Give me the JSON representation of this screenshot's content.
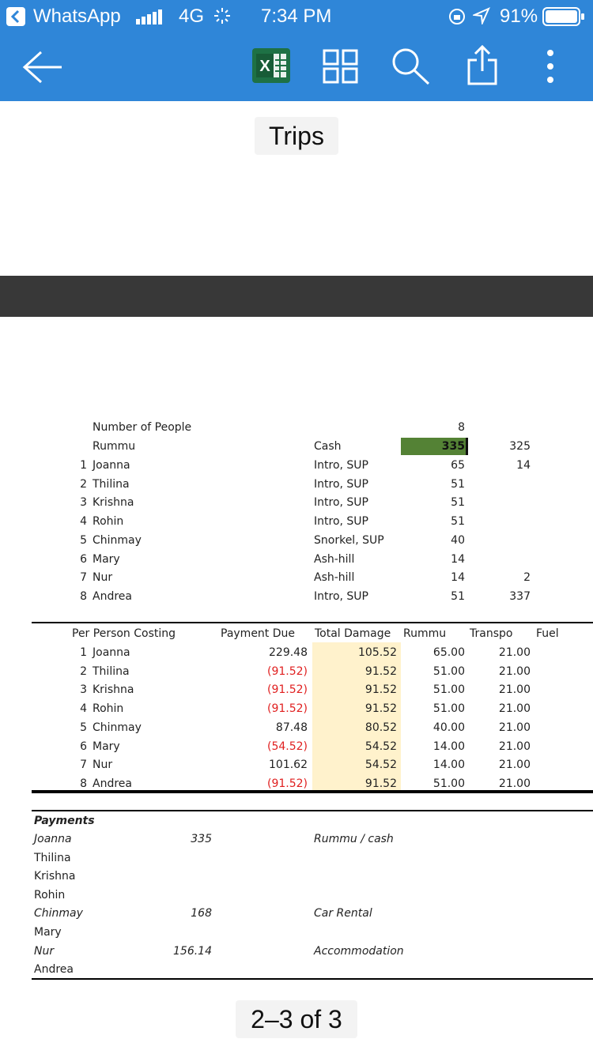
{
  "status_bar": {
    "back_app": "WhatsApp",
    "network": "4G",
    "time": "7:34 PM",
    "battery": "91%"
  },
  "toolbar": {
    "excel_label": "X"
  },
  "document": {
    "title": "Trips",
    "pager": "2–3 of 3"
  },
  "section1": {
    "number_of_people_label": "Number of People",
    "number_of_people_value": "8",
    "rummu_label": "Rummu",
    "cash_label": "Cash",
    "cash_value": "335",
    "cash_extra": "325",
    "rows": [
      {
        "num": "1",
        "name": "Joanna",
        "activity": "Intro, SUP",
        "value": "65",
        "extra": "14"
      },
      {
        "num": "2",
        "name": "Thilina",
        "activity": "Intro, SUP",
        "value": "51",
        "extra": ""
      },
      {
        "num": "3",
        "name": "Krishna",
        "activity": "Intro, SUP",
        "value": "51",
        "extra": ""
      },
      {
        "num": "4",
        "name": "Rohin",
        "activity": "Intro, SUP",
        "value": "51",
        "extra": ""
      },
      {
        "num": "5",
        "name": "Chinmay",
        "activity": "Snorkel, SUP",
        "value": "40",
        "extra": ""
      },
      {
        "num": "6",
        "name": "Mary",
        "activity": "Ash-hill",
        "value": "14",
        "extra": ""
      },
      {
        "num": "7",
        "name": "Nur",
        "activity": "Ash-hill",
        "value": "14",
        "extra": "2"
      },
      {
        "num": "8",
        "name": "Andrea",
        "activity": "Intro, SUP",
        "value": "51",
        "extra": "337"
      }
    ]
  },
  "section2": {
    "headers": {
      "per_person": "Per Person Costing",
      "payment_due": "Payment Due",
      "total_damage": "Total Damage",
      "rummu": "Rummu",
      "transpo": "Transpo",
      "fuel": "Fuel"
    },
    "rows": [
      {
        "num": "1",
        "name": "Joanna",
        "payment_due": "229.48",
        "total_damage": "105.52",
        "rummu": "65.00",
        "transpo": "21.00"
      },
      {
        "num": "2",
        "name": "Thilina",
        "payment_due": "(91.52)",
        "total_damage": "91.52",
        "rummu": "51.00",
        "transpo": "21.00"
      },
      {
        "num": "3",
        "name": "Krishna",
        "payment_due": "(91.52)",
        "total_damage": "91.52",
        "rummu": "51.00",
        "transpo": "21.00"
      },
      {
        "num": "4",
        "name": "Rohin",
        "payment_due": "(91.52)",
        "total_damage": "91.52",
        "rummu": "51.00",
        "transpo": "21.00"
      },
      {
        "num": "5",
        "name": "Chinmay",
        "payment_due": "87.48",
        "total_damage": "80.52",
        "rummu": "40.00",
        "transpo": "21.00"
      },
      {
        "num": "6",
        "name": "Mary",
        "payment_due": "(54.52)",
        "total_damage": "54.52",
        "rummu": "14.00",
        "transpo": "21.00"
      },
      {
        "num": "7",
        "name": "Nur",
        "payment_due": "101.62",
        "total_damage": "54.52",
        "rummu": "14.00",
        "transpo": "21.00"
      },
      {
        "num": "8",
        "name": "Andrea",
        "payment_due": "(91.52)",
        "total_damage": "91.52",
        "rummu": "51.00",
        "transpo": "21.00"
      }
    ]
  },
  "section3": {
    "title": "Payments",
    "rows": [
      {
        "name": "Joanna",
        "amount": "335",
        "note": "Rummu / cash"
      },
      {
        "name": "Thilina",
        "amount": "",
        "note": ""
      },
      {
        "name": "Krishna",
        "amount": "",
        "note": ""
      },
      {
        "name": "Rohin",
        "amount": "",
        "note": ""
      },
      {
        "name": "Chinmay",
        "amount": "168",
        "note": "Car Rental"
      },
      {
        "name": "Mary",
        "amount": "",
        "note": ""
      },
      {
        "name": "Nur",
        "amount": "156.14",
        "note": "Accommodation"
      },
      {
        "name": "Andrea",
        "amount": "",
        "note": ""
      }
    ]
  },
  "colors": {
    "header_blue": "#2f86d8",
    "highlight_green": "#548235",
    "damage_fill": "#fff2cc",
    "negative_red": "#e02020",
    "excel_green": "#1e7145"
  }
}
